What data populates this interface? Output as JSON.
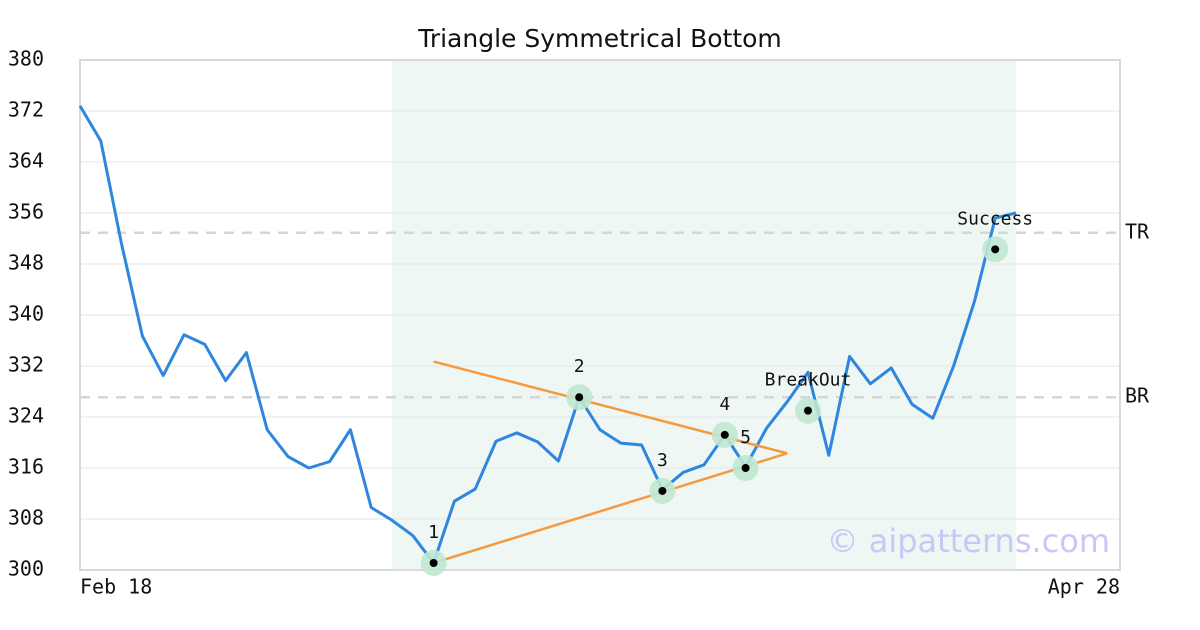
{
  "chart_data": {
    "type": "line",
    "title": "Triangle Symmetrical Bottom",
    "categories": [
      "Feb 18",
      null,
      null,
      null,
      null,
      null,
      null,
      null,
      null,
      null,
      null,
      null,
      null,
      null,
      null,
      null,
      null,
      null,
      null,
      null,
      null,
      null,
      null,
      null,
      null,
      null,
      null,
      null,
      null,
      null,
      null,
      null,
      null,
      null,
      null,
      null,
      null,
      null,
      null,
      null,
      null,
      null,
      null,
      null,
      null,
      null,
      null,
      null,
      null,
      null,
      "Apr 28"
    ],
    "values": [
      372.8,
      367.3,
      351.1,
      336.7,
      330.5,
      336.9,
      335.4,
      329.7,
      334.1,
      322.0,
      317.8,
      316.0,
      317.0,
      322.0,
      309.8,
      307.8,
      305.4,
      301.1,
      310.8,
      312.7,
      320.2,
      321.5,
      320.1,
      317.1,
      327.1,
      322.0,
      319.9,
      319.6,
      312.6,
      315.3,
      316.5,
      321.2,
      316.2,
      322.2,
      326.4,
      331.0,
      318.0,
      333.5,
      329.2,
      331.7,
      326.0,
      323.8,
      332.0,
      342.1,
      355.2,
      356.0,
      null,
      null,
      null,
      null,
      null
    ],
    "color": "#2e86de",
    "ylim": [
      300,
      380
    ],
    "yticks": [
      300,
      308,
      316,
      324,
      332,
      340,
      348,
      356,
      364,
      372,
      380
    ],
    "grid": true,
    "highlight_range": {
      "start": 15,
      "end": 45,
      "color": "#eef7f3"
    },
    "levels": [
      {
        "label": "TR",
        "value": 352.9
      },
      {
        "label": "BR",
        "value": 327.1
      }
    ],
    "pattern_color": "#f59a3e",
    "pattern_lines": [
      {
        "x": [
          17,
          34
        ],
        "y": [
          332.7,
          318.3
        ]
      },
      {
        "x": [
          17,
          34
        ],
        "y": [
          301.1,
          318.3
        ]
      }
    ],
    "markers": [
      {
        "label": "1",
        "x": 17,
        "y": 301.1
      },
      {
        "label": "2",
        "x": 24,
        "y": 327.1
      },
      {
        "label": "3",
        "x": 28,
        "y": 312.4
      },
      {
        "label": "4",
        "x": 31,
        "y": 321.2
      },
      {
        "label": "5",
        "x": 32,
        "y": 316.0
      },
      {
        "label": "BreakOut",
        "x": 35,
        "y": 325.0
      },
      {
        "label": "Success",
        "x": 44,
        "y": 350.3
      }
    ],
    "watermark": "© aipatterns.com"
  }
}
